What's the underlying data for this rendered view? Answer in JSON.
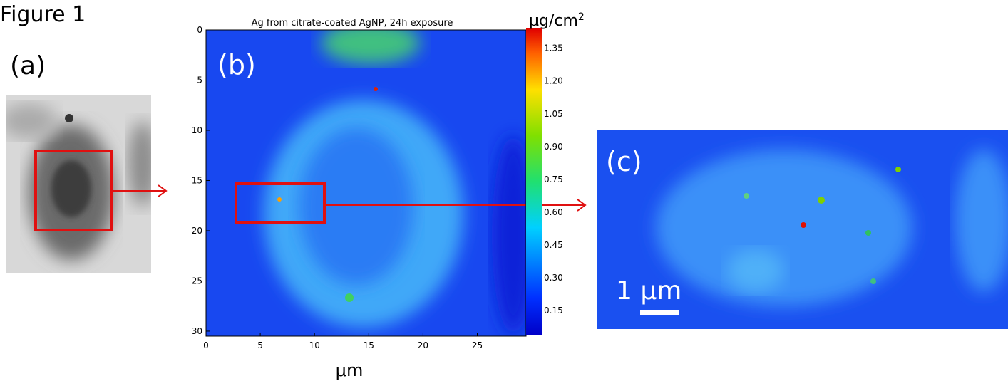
{
  "figure_label": "Figure 1",
  "panel_a": {
    "label": "(a)"
  },
  "panel_b": {
    "label": "(b)",
    "title": "Ag from citrate-coated AgNP, 24h exposure",
    "xlabel": "μm",
    "xlim": [
      0,
      29.5
    ],
    "xticks": [
      0,
      5,
      10,
      15,
      20,
      25
    ],
    "ylim": [
      0,
      30.5
    ],
    "yticks": [
      0,
      5,
      10,
      15,
      20,
      25,
      30
    ],
    "colorbar": {
      "unit": "μg/cm",
      "unit_exponent": "2",
      "clim": [
        0.04,
        1.44
      ],
      "ticks": [
        {
          "value": 0.15,
          "label": "0.15"
        },
        {
          "value": 0.3,
          "label": "0.30"
        },
        {
          "value": 0.45,
          "label": "0.45"
        },
        {
          "value": 0.6,
          "label": "0.60"
        },
        {
          "value": 0.75,
          "label": "0.75"
        },
        {
          "value": 0.9,
          "label": "0.90"
        },
        {
          "value": 1.05,
          "label": "1.05"
        },
        {
          "value": 1.2,
          "label": "1.20"
        },
        {
          "value": 1.35,
          "label": "1.35"
        }
      ]
    }
  },
  "panel_c": {
    "label": "(c)",
    "scale_bar": "1 μm"
  }
}
